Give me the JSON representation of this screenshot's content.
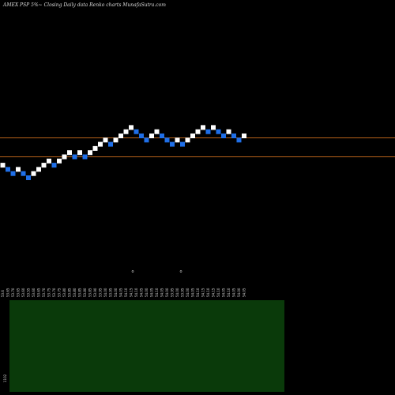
{
  "header": {
    "title": "AMEX  PSP 5%~  Closing Daily data  Renko  charts MunafaSutra.com"
  },
  "colors": {
    "background": "#000000",
    "up_brick": "#ffffff",
    "down_brick": "#1f6fe8",
    "level_line": "#b8621a",
    "volume_panel": "#0a3a0a"
  },
  "chart_data": {
    "type": "renko",
    "title": "AMEX  PSP 5%~  Closing Daily data  Renko  charts MunafaSutra.com",
    "brick_levels": [
      3,
      2,
      1,
      2,
      1,
      0,
      1,
      2,
      3,
      4,
      3,
      4,
      5,
      6,
      5,
      6,
      5,
      6,
      7,
      8,
      9,
      8,
      9,
      10,
      11,
      12,
      11,
      10,
      9,
      10,
      11,
      10,
      9,
      8,
      9,
      8,
      9,
      10,
      11,
      12,
      11,
      12,
      11,
      10,
      11,
      10,
      9,
      10
    ],
    "brick_directions": [
      "up",
      "down",
      "down",
      "up",
      "down",
      "down",
      "up",
      "up",
      "up",
      "up",
      "down",
      "up",
      "up",
      "up",
      "down",
      "up",
      "down",
      "up",
      "up",
      "up",
      "up",
      "down",
      "up",
      "up",
      "up",
      "up",
      "down",
      "down",
      "down",
      "up",
      "up",
      "down",
      "down",
      "down",
      "up",
      "down",
      "up",
      "up",
      "up",
      "up",
      "down",
      "up",
      "down",
      "down",
      "up",
      "down",
      "down",
      "up"
    ],
    "reference_lines": [
      "upper",
      "lower"
    ],
    "x_tick_labels": [
      "53.6",
      "53.65",
      "53.70",
      "53.65",
      "53.60",
      "53.55",
      "53.60",
      "53.65",
      "53.70",
      "53.75",
      "53.70",
      "53.75",
      "53.80",
      "53.85",
      "53.80",
      "53.85",
      "53.80",
      "53.85",
      "53.90",
      "53.95",
      "54.00",
      "53.95",
      "54.00",
      "54.05",
      "54.10",
      "54.15",
      "54.10",
      "54.05",
      "54.00",
      "54.05",
      "54.10",
      "54.05",
      "54.00",
      "53.95",
      "54.00",
      "53.95",
      "54.00",
      "54.05",
      "54.10",
      "54.15",
      "54.10",
      "54.15",
      "54.10",
      "54.05",
      "54.10",
      "54.05",
      "54.00",
      "54.05"
    ],
    "small_markers": [
      "o",
      "o"
    ],
    "volume_label": "1102"
  }
}
